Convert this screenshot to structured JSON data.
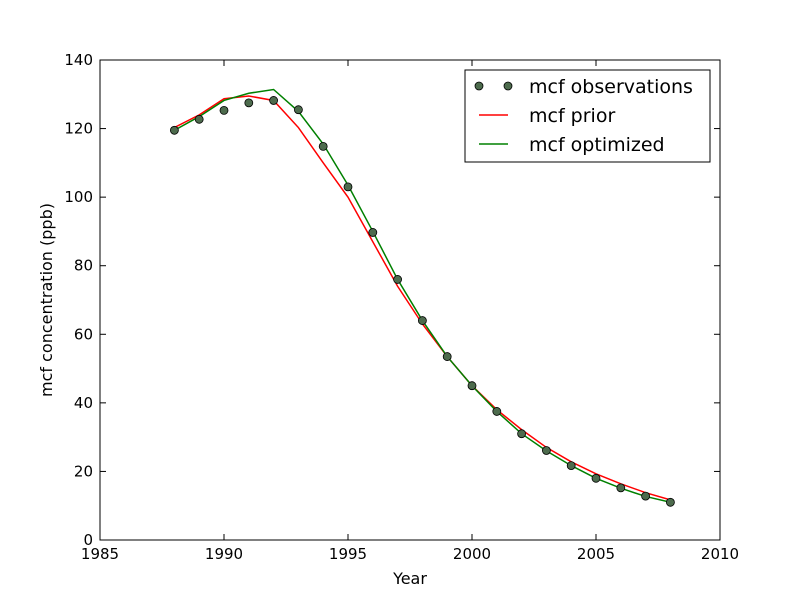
{
  "chart_data": {
    "type": "line",
    "title": "",
    "xlabel": "Year",
    "ylabel": "mcf concentration (ppb)",
    "xlim": [
      1985,
      2010
    ],
    "ylim": [
      0,
      140
    ],
    "x_ticks": [
      "1985",
      "1990",
      "1995",
      "2000",
      "2005",
      "2010"
    ],
    "y_ticks": [
      "0",
      "20",
      "40",
      "60",
      "80",
      "100",
      "120",
      "140"
    ],
    "grid": false,
    "legend_position": "top-right",
    "x": [
      1988,
      1989,
      1990,
      1991,
      1992,
      1993,
      1994,
      1995,
      1996,
      1997,
      1998,
      1999,
      2000,
      2001,
      2002,
      2003,
      2004,
      2005,
      2006,
      2007,
      2008
    ],
    "series": [
      {
        "name": "mcf observations",
        "style": "markers",
        "color": "#4d6b4d",
        "values": [
          119.5,
          122.7,
          125.3,
          127.5,
          128.2,
          125.5,
          114.8,
          103.0,
          89.7,
          76.0,
          64.0,
          53.5,
          45.0,
          37.5,
          31.0,
          26.1,
          21.7,
          18.0,
          15.2,
          12.8,
          11.0
        ]
      },
      {
        "name": "mcf prior",
        "style": "line",
        "color": "#ff0000",
        "values": [
          120.3,
          124.0,
          128.7,
          129.5,
          128.2,
          120.3,
          110.0,
          100.0,
          87.0,
          74.0,
          63.0,
          53.5,
          45.0,
          38.0,
          32.2,
          27.0,
          22.8,
          19.3,
          16.4,
          13.8,
          11.7
        ]
      },
      {
        "name": "mcf optimized",
        "style": "line",
        "color": "#008000",
        "values": [
          119.5,
          123.5,
          128.2,
          130.3,
          131.4,
          125.0,
          115.5,
          103.5,
          90.0,
          76.0,
          64.0,
          53.5,
          45.0,
          37.5,
          31.0,
          26.0,
          21.7,
          18.0,
          15.1,
          12.7,
          11.0
        ]
      }
    ]
  }
}
